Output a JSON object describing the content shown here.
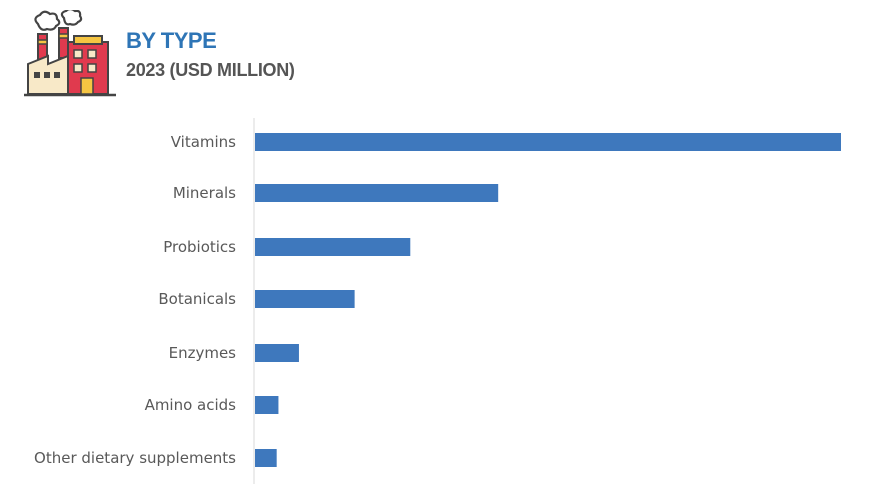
{
  "chart_data": {
    "type": "bar",
    "orientation": "horizontal",
    "title": "BY TYPE",
    "subtitle": "2023 (USD MILLION)",
    "categories": [
      "Vitamins",
      "Minerals",
      "Probiotics",
      "Botanicals",
      "Enzymes",
      "Amino acids",
      "Other dietary supplements"
    ],
    "values": [
      100,
      41.5,
      26.5,
      17,
      7.5,
      4,
      3.7
    ],
    "xlim": [
      0,
      100
    ],
    "axis_numbers_shown": false,
    "grid": false,
    "legend": "none",
    "bar_color": "#3e78bd"
  },
  "header": {
    "icon": "factory-icon"
  },
  "colors": {
    "title": "#2e75b6",
    "subtitle": "#555555",
    "label": "#595959",
    "axis": "#d9d9d9"
  }
}
